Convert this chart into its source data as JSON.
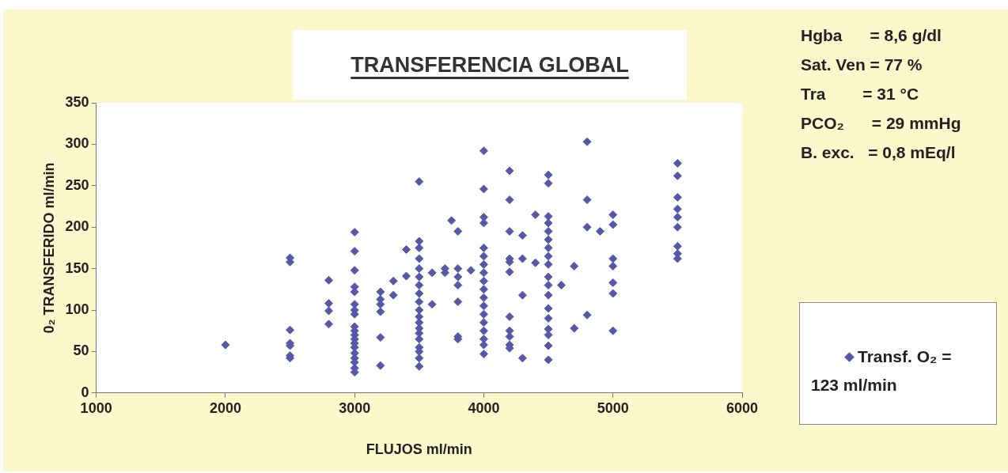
{
  "chart_data": {
    "type": "scatter",
    "title": "TRANSFERENCIA GLOBAL",
    "xlabel": "FLUJOS ml/min",
    "ylabel": "0₂ TRANSFERIDO ml/min",
    "annotations": [
      "Hgba      = 8,6 g/dl",
      "Sat. Ven = 77 %",
      "Tra        = 31 °C",
      "PCO₂      = 29 mmHg",
      "B. exc.   = 0,8 mEq/l"
    ],
    "xlim": [
      1000,
      6000
    ],
    "xticks": [
      1000,
      2000,
      3000,
      4000,
      5000,
      6000
    ],
    "ylim": [
      0,
      350
    ],
    "yticks": [
      0,
      50,
      100,
      150,
      200,
      250,
      300,
      350
    ],
    "grid": false,
    "legend": "right",
    "marker": "diamond",
    "series": [
      {
        "name": "Transf. O₂ = 123 ml/min",
        "color": "#5558a8",
        "x": [
          2000,
          2500,
          2500,
          2500,
          2500,
          2500,
          2500,
          2500,
          2800,
          2800,
          2800,
          2800,
          3000,
          3000,
          3000,
          3000,
          3000,
          3000,
          3000,
          3000,
          3000,
          3000,
          3000,
          3000,
          3000,
          3000,
          3000,
          3000,
          3000,
          3000,
          3000,
          3200,
          3200,
          3200,
          3200,
          3200,
          3200,
          3300,
          3300,
          3400,
          3400,
          3500,
          3500,
          3500,
          3500,
          3500,
          3500,
          3500,
          3500,
          3500,
          3500,
          3500,
          3500,
          3500,
          3500,
          3500,
          3500,
          3500,
          3500,
          3500,
          3600,
          3600,
          3700,
          3700,
          3750,
          3800,
          3800,
          3800,
          3800,
          3800,
          3800,
          3800,
          3900,
          4000,
          4000,
          4000,
          4000,
          4000,
          4000,
          4000,
          4000,
          4000,
          4000,
          4000,
          4000,
          4000,
          4000,
          4000,
          4000,
          4000,
          4000,
          4200,
          4200,
          4200,
          4200,
          4200,
          4200,
          4200,
          4200,
          4200,
          4200,
          4200,
          4300,
          4300,
          4300,
          4300,
          4400,
          4400,
          4500,
          4500,
          4500,
          4500,
          4500,
          4500,
          4500,
          4500,
          4500,
          4500,
          4500,
          4500,
          4500,
          4500,
          4500,
          4500,
          4500,
          4500,
          4600,
          4700,
          4700,
          4800,
          4800,
          4800,
          4800,
          4900,
          5000,
          5000,
          5000,
          5000,
          5000,
          5000,
          5000,
          5500,
          5500,
          5500,
          5500,
          5500,
          5500,
          5500,
          5500,
          5500
        ],
        "values": [
          58,
          163,
          158,
          76,
          60,
          57,
          45,
          42,
          136,
          108,
          99,
          83,
          194,
          171,
          148,
          128,
          122,
          107,
          100,
          95,
          80,
          75,
          70,
          65,
          60,
          55,
          48,
          42,
          37,
          30,
          25,
          122,
          113,
          107,
          98,
          67,
          33,
          135,
          118,
          173,
          141,
          255,
          183,
          175,
          162,
          150,
          140,
          130,
          120,
          110,
          100,
          92,
          85,
          78,
          72,
          65,
          55,
          50,
          42,
          32,
          145,
          107,
          150,
          145,
          208,
          195,
          150,
          140,
          130,
          110,
          68,
          65,
          148,
          292,
          246,
          212,
          205,
          175,
          165,
          155,
          145,
          135,
          125,
          115,
          105,
          95,
          85,
          75,
          65,
          58,
          47,
          268,
          233,
          195,
          162,
          158,
          146,
          92,
          75,
          68,
          58,
          54,
          190,
          162,
          118,
          42,
          215,
          157,
          263,
          253,
          213,
          205,
          195,
          185,
          175,
          165,
          155,
          140,
          130,
          118,
          102,
          90,
          77,
          70,
          57,
          40,
          130,
          153,
          78,
          303,
          233,
          200,
          94,
          195,
          215,
          203,
          162,
          153,
          133,
          120,
          75,
          277,
          262,
          236,
          222,
          212,
          200,
          177,
          168,
          162
        ]
      }
    ]
  }
}
